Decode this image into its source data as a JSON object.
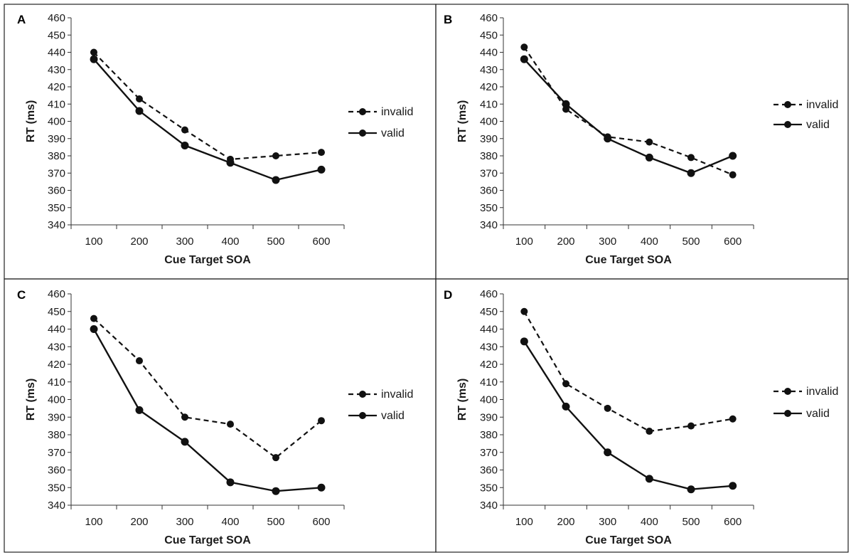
{
  "chart_data": [
    {
      "panel": "A",
      "type": "line",
      "xlabel": "Cue Target SOA",
      "ylabel": "RT (ms)",
      "x": [
        100,
        200,
        300,
        400,
        500,
        600
      ],
      "ylim": [
        340,
        460
      ],
      "ystep": 10,
      "grid": false,
      "legend": "right",
      "series": [
        {
          "name": "invalid",
          "style": "dashed",
          "values": [
            440,
            413,
            395,
            378,
            380,
            382
          ]
        },
        {
          "name": "valid",
          "style": "solid",
          "values": [
            436,
            406,
            386,
            376,
            366,
            372
          ]
        }
      ]
    },
    {
      "panel": "B",
      "type": "line",
      "xlabel": "Cue Target SOA",
      "ylabel": "RT (ms)",
      "x": [
        100,
        200,
        300,
        400,
        500,
        600
      ],
      "ylim": [
        340,
        460
      ],
      "ystep": 10,
      "grid": false,
      "legend": "right",
      "series": [
        {
          "name": "invalid",
          "style": "dashed",
          "values": [
            443,
            407,
            391,
            388,
            379,
            369
          ]
        },
        {
          "name": "valid",
          "style": "solid",
          "values": [
            436,
            410,
            390,
            379,
            370,
            380
          ]
        }
      ]
    },
    {
      "panel": "C",
      "type": "line",
      "xlabel": "Cue Target SOA",
      "ylabel": "RT (ms)",
      "x": [
        100,
        200,
        300,
        400,
        500,
        600
      ],
      "ylim": [
        340,
        460
      ],
      "ystep": 10,
      "grid": false,
      "legend": "right",
      "series": [
        {
          "name": "invalid",
          "style": "dashed",
          "values": [
            446,
            422,
            390,
            386,
            367,
            388
          ]
        },
        {
          "name": "valid",
          "style": "solid",
          "values": [
            440,
            394,
            376,
            353,
            348,
            350
          ]
        }
      ]
    },
    {
      "panel": "D",
      "type": "line",
      "xlabel": "Cue Target SOA",
      "ylabel": "RT (ms)",
      "x": [
        100,
        200,
        300,
        400,
        500,
        600
      ],
      "ylim": [
        340,
        460
      ],
      "ystep": 10,
      "grid": false,
      "legend": "right",
      "series": [
        {
          "name": "invalid",
          "style": "dashed",
          "values": [
            450,
            409,
            395,
            382,
            385,
            389
          ]
        },
        {
          "name": "valid",
          "style": "solid",
          "values": [
            433,
            396,
            370,
            355,
            349,
            351
          ]
        }
      ]
    }
  ]
}
